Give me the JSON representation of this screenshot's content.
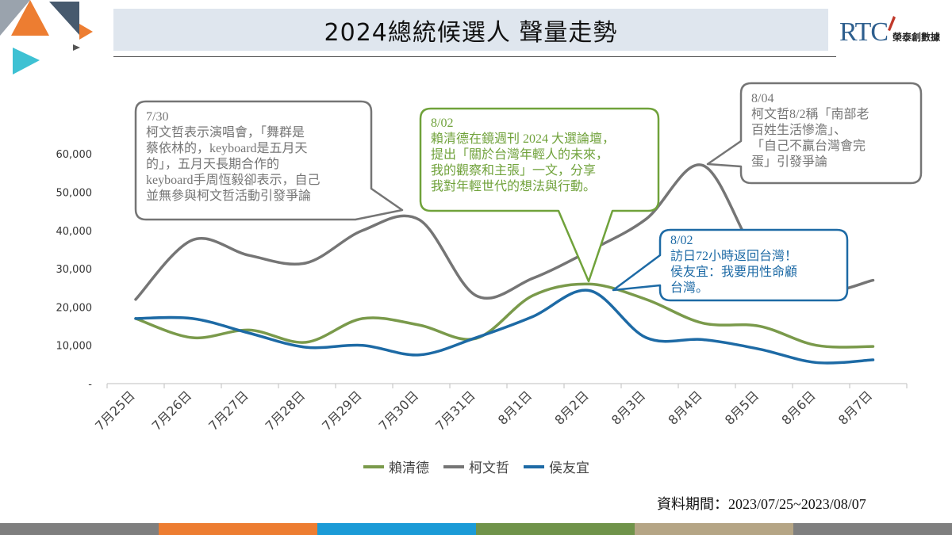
{
  "header": {
    "title": "2024總統候選人 聲量走勢",
    "brand_logo_text": "RTC",
    "brand_name": "榮泰創數據"
  },
  "colors": {
    "lai": "#7a9a4b",
    "ko": "#757575",
    "hou": "#1d6aa5",
    "title_bg": "#dfe6ee",
    "bottom_bar": [
      "#7f7f7f",
      "#ed7d31",
      "#1b9bd7",
      "#70934a",
      "#b5a585",
      "#7f7f7f"
    ]
  },
  "chart_data": {
    "type": "line",
    "categories": [
      "7月25日",
      "7月26日",
      "7月27日",
      "7月28日",
      "7月29日",
      "7月30日",
      "7月31日",
      "8月1日",
      "8月2日",
      "8月3日",
      "8月4日",
      "8月5日",
      "8月6日",
      "8月7日"
    ],
    "series": [
      {
        "name": "賴清德",
        "color": "#7a9a4b",
        "values": [
          17000,
          12000,
          14000,
          10800,
          17000,
          15300,
          11800,
          23000,
          26000,
          22000,
          15800,
          15000,
          10000,
          9700
        ]
      },
      {
        "name": "柯文哲",
        "color": "#757575",
        "values": [
          22000,
          37500,
          33500,
          31500,
          40000,
          42800,
          23000,
          27500,
          34700,
          43000,
          57000,
          32500,
          24000,
          27000
        ]
      },
      {
        "name": "侯友宜",
        "color": "#1d6aa5",
        "values": [
          17000,
          17000,
          13200,
          9500,
          10000,
          7500,
          12000,
          17500,
          24300,
          12000,
          11500,
          9000,
          5500,
          6200
        ]
      }
    ],
    "yticks": [
      "-",
      "10,000",
      "20,000",
      "30,000",
      "40,000",
      "50,000",
      "60,000"
    ],
    "ylim": [
      0,
      60000
    ],
    "legend_position": "bottom",
    "grid": false,
    "annotations": [
      {
        "id": "ann-0730",
        "color": "#757575",
        "lines": [
          "7/30",
          "柯文哲表示演唱會，「舞群是",
          "蔡依林的，keyboard是五月天",
          "的」，五月天長期合作的",
          "keyboard手周恆毅卻表示，自己",
          "並無參與柯文哲活動引發爭論"
        ]
      },
      {
        "id": "ann-0802-lai",
        "color": "#70a23b",
        "lines": [
          "8/02",
          "賴清德在鏡週刊 2024 大選論壇，",
          "提出「關於台灣年輕人的未來，",
          "我的觀察和主張」一文，分享",
          "我對年輕世代的想法與行動。"
        ]
      },
      {
        "id": "ann-0804",
        "color": "#757575",
        "lines": [
          "8/04",
          "柯文哲8/2稱「南部老",
          "百姓生活慘澹」、",
          "「自己不贏台灣會完",
          "蛋」引發爭論"
        ]
      },
      {
        "id": "ann-0802-hou",
        "color": "#1d6aa5",
        "lines": [
          "8/02",
          "訪日72小時返回台灣！",
          "侯友宜：我要用性命顧",
          "台灣。"
        ]
      }
    ]
  },
  "footer": {
    "source": "資料期間：2023/07/25~2023/08/07"
  }
}
